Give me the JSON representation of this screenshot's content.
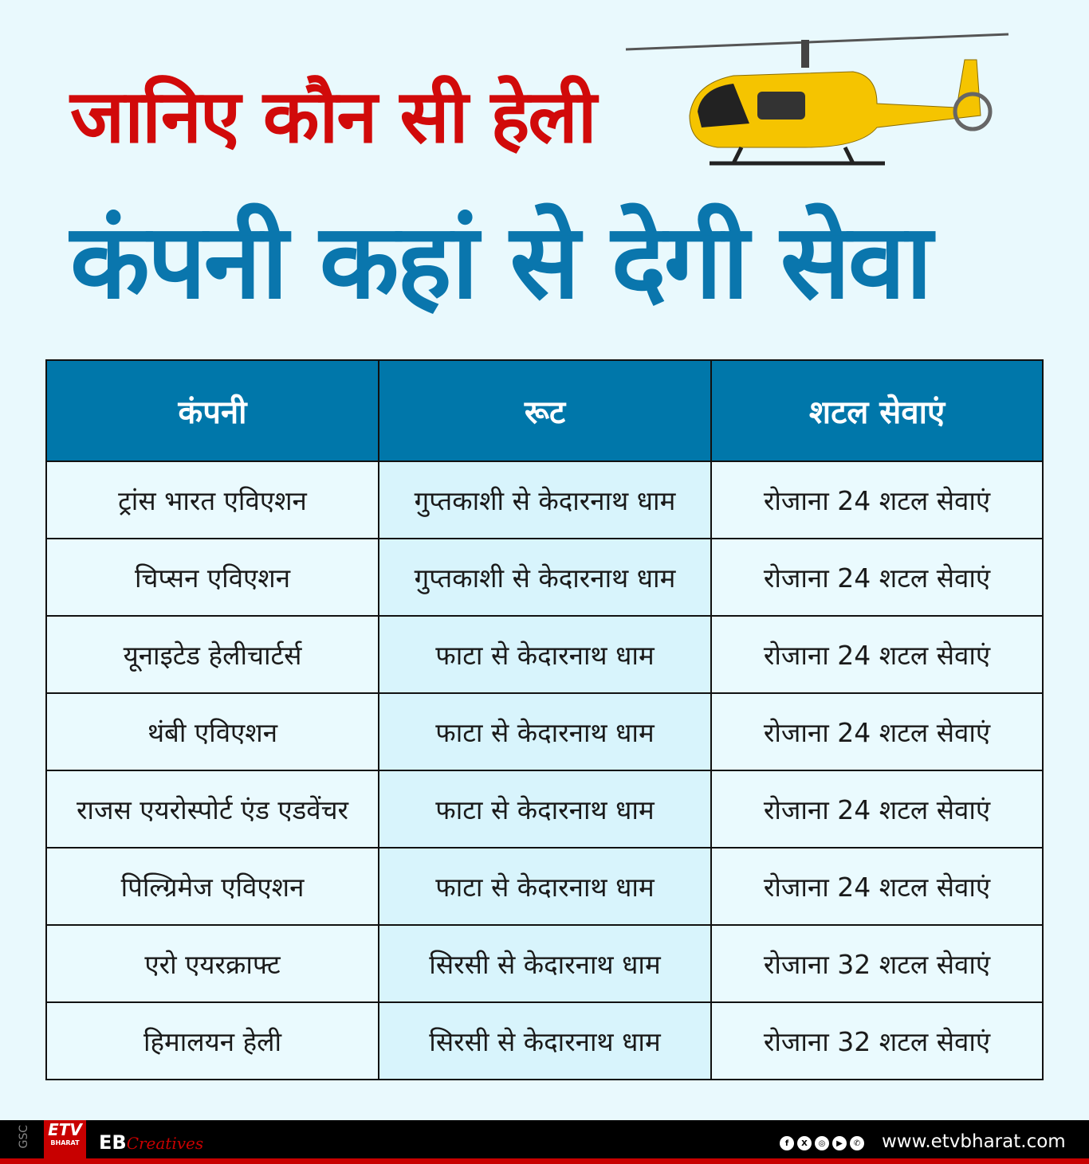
{
  "title": {
    "line1": "जानिए कौन सी हेली",
    "line2": "कंपनी कहां से देगी सेवा"
  },
  "colors": {
    "title_red": "#d10a0a",
    "title_blue": "#0a76ad",
    "header_bg": "#0077aa",
    "background": "#e9f9fd"
  },
  "table": {
    "headers": [
      "कंपनी",
      "रूट",
      "शटल सेवाएं"
    ],
    "rows": [
      [
        "ट्रांस भारत एविएशन",
        "गुप्तकाशी से केदारनाथ धाम",
        "रोजाना 24 शटल सेवाएं"
      ],
      [
        "चिप्सन एविएशन",
        "गुप्तकाशी से केदारनाथ धाम",
        "रोजाना 24 शटल सेवाएं"
      ],
      [
        "यूनाइटेड हेलीचार्टर्स",
        "फाटा से केदारनाथ धाम",
        "रोजाना 24 शटल सेवाएं"
      ],
      [
        "थंबी एविएशन",
        "फाटा से केदारनाथ धाम",
        "रोजाना 24 शटल सेवाएं"
      ],
      [
        "राजस एयरोस्पोर्ट एंड एडवेंचर",
        "फाटा से केदारनाथ धाम",
        "रोजाना 24 शटल सेवाएं"
      ],
      [
        "पिल्ग्रिमेज एविएशन",
        "फाटा से केदारनाथ धाम",
        "रोजाना 24 शटल सेवाएं"
      ],
      [
        "एरो एयरक्राफ्ट",
        "सिरसी से केदारनाथ धाम",
        "रोजाना 32 शटल सेवाएं"
      ],
      [
        "हिमालयन हेली",
        "सिरसी से केदारनाथ धाम",
        "रोजाना 32 शटल सेवाएं"
      ]
    ]
  },
  "footer": {
    "gsc": "GSC",
    "logo": "ETV",
    "logo_sub": "BHARAT",
    "eb": "EB",
    "creatives": "Creatives",
    "social_icons": [
      "facebook-icon",
      "x-icon",
      "instagram-icon",
      "youtube-icon",
      "whatsapp-icon"
    ],
    "url": "www.etvbharat.com"
  }
}
